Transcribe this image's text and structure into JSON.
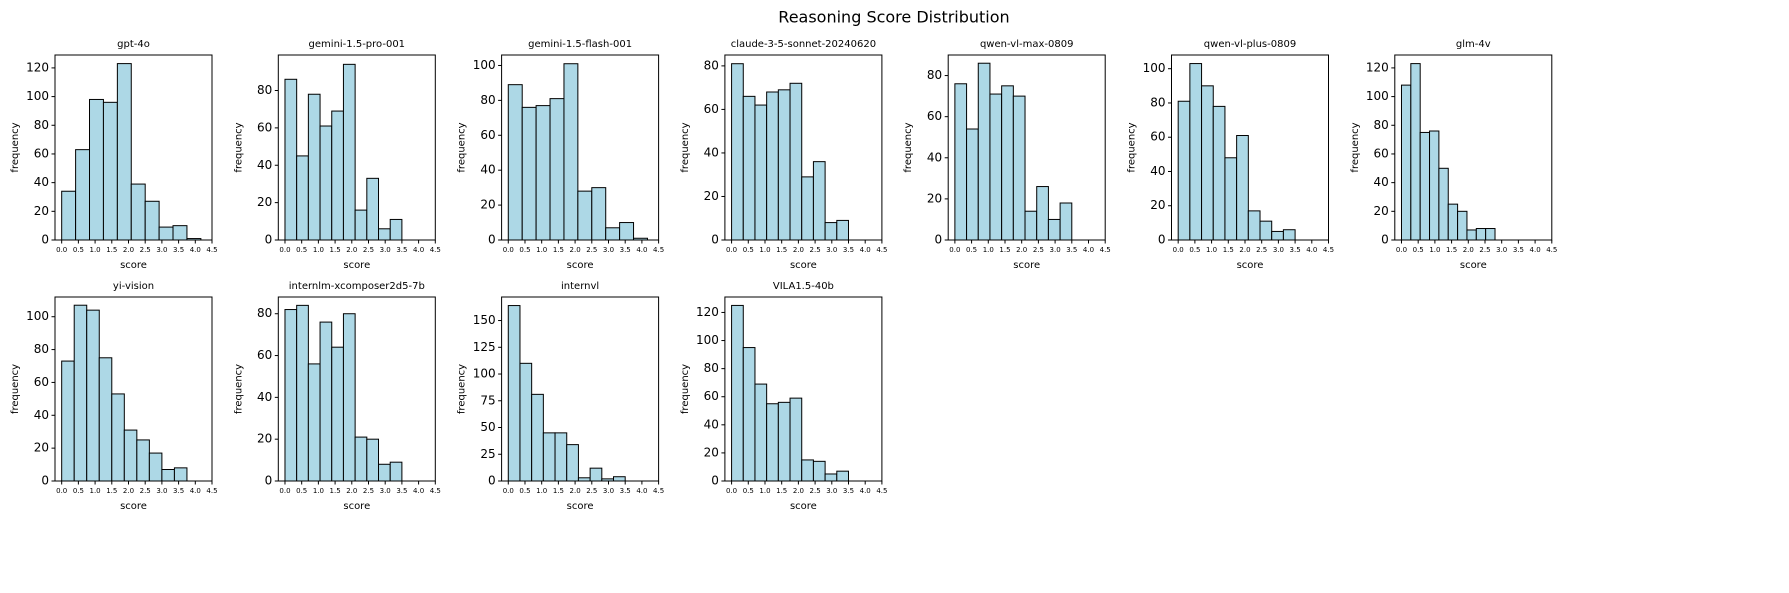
{
  "title": "Reasoning Score Distribution",
  "chart_data": [
    {
      "type": "histogram",
      "title": "gpt-4o",
      "x_label": "score",
      "y_label": "frequency",
      "color": "#add8e6",
      "bins": [
        0,
        0.417,
        0.833,
        1.25,
        1.667,
        2.083,
        2.5,
        2.917,
        3.333,
        3.75,
        4.167
      ],
      "values": [
        34,
        63,
        98,
        96,
        123,
        39,
        27,
        9,
        10,
        1
      ],
      "xlim": [
        -0.2,
        4.5
      ],
      "xticks": [
        {
          "value": 0,
          "label": "0.0"
        },
        0.5,
        {
          "value": 1,
          "label": "1.0"
        },
        1.5,
        {
          "value": 2,
          "label": "2.0"
        },
        2.5,
        {
          "value": 3,
          "label": "3.0"
        },
        3.5,
        {
          "value": 4,
          "label": "4.0"
        },
        4.5
      ],
      "ylim": [
        0,
        129
      ],
      "yticks": [
        0,
        20,
        40,
        60,
        80,
        100,
        120
      ]
    },
    {
      "type": "histogram",
      "title": "gemini-1.5-pro-001",
      "x_label": "score",
      "y_label": "frequency",
      "color": "#add8e6",
      "bins": [
        0,
        0.35,
        0.7,
        1.05,
        1.4,
        1.75,
        2.1,
        2.45,
        2.8,
        3.15,
        3.5
      ],
      "values": [
        86,
        45,
        78,
        61,
        69,
        94,
        16,
        33,
        6,
        11
      ],
      "xlim": [
        -0.2,
        4.5
      ],
      "xticks": [
        {
          "value": 0,
          "label": "0.0"
        },
        0.5,
        {
          "value": 1,
          "label": "1.0"
        },
        1.5,
        {
          "value": 2,
          "label": "2.0"
        },
        2.5,
        {
          "value": 3,
          "label": "3.0"
        },
        3.5,
        {
          "value": 4,
          "label": "4.0"
        },
        4.5
      ],
      "ylim": [
        0,
        99
      ],
      "yticks": [
        0,
        20,
        40,
        60,
        80
      ]
    },
    {
      "type": "histogram",
      "title": "gemini-1.5-flash-001",
      "x_label": "score",
      "y_label": "frequency",
      "color": "#add8e6",
      "bins": [
        0,
        0.417,
        0.833,
        1.25,
        1.667,
        2.083,
        2.5,
        2.917,
        3.333,
        3.75,
        4.167
      ],
      "values": [
        89,
        76,
        77,
        81,
        101,
        28,
        30,
        7,
        10,
        1
      ],
      "xlim": [
        -0.2,
        4.5
      ],
      "xticks": [
        {
          "value": 0,
          "label": "0.0"
        },
        0.5,
        {
          "value": 1,
          "label": "1.0"
        },
        1.5,
        {
          "value": 2,
          "label": "2.0"
        },
        2.5,
        {
          "value": 3,
          "label": "3.0"
        },
        3.5,
        {
          "value": 4,
          "label": "4.0"
        },
        4.5
      ],
      "ylim": [
        0,
        106
      ],
      "yticks": [
        0,
        20,
        40,
        60,
        80,
        100
      ]
    },
    {
      "type": "histogram",
      "title": "claude-3-5-sonnet-20240620",
      "x_label": "score",
      "y_label": "frequency",
      "color": "#add8e6",
      "bins": [
        0,
        0.35,
        0.7,
        1.05,
        1.4,
        1.75,
        2.1,
        2.45,
        2.8,
        3.15,
        3.5
      ],
      "values": [
        81,
        66,
        62,
        68,
        69,
        72,
        29,
        36,
        8,
        9
      ],
      "xlim": [
        -0.2,
        4.5
      ],
      "xticks": [
        {
          "value": 0,
          "label": "0.0"
        },
        0.5,
        {
          "value": 1,
          "label": "1.0"
        },
        1.5,
        {
          "value": 2,
          "label": "2.0"
        },
        2.5,
        {
          "value": 3,
          "label": "3.0"
        },
        3.5,
        {
          "value": 4,
          "label": "4.0"
        },
        4.5
      ],
      "ylim": [
        0,
        85
      ],
      "yticks": [
        0,
        20,
        40,
        60,
        80
      ]
    },
    {
      "type": "histogram",
      "title": "qwen-vl-max-0809",
      "x_label": "score",
      "y_label": "frequency",
      "color": "#add8e6",
      "bins": [
        0,
        0.35,
        0.7,
        1.05,
        1.4,
        1.75,
        2.1,
        2.45,
        2.8,
        3.15,
        3.5
      ],
      "values": [
        76,
        54,
        86,
        71,
        75,
        70,
        14,
        26,
        10,
        18
      ],
      "xlim": [
        -0.2,
        4.5
      ],
      "xticks": [
        {
          "value": 0,
          "label": "0.0"
        },
        0.5,
        {
          "value": 1,
          "label": "1.0"
        },
        1.5,
        {
          "value": 2,
          "label": "2.0"
        },
        2.5,
        {
          "value": 3,
          "label": "3.0"
        },
        3.5,
        {
          "value": 4,
          "label": "4.0"
        },
        4.5
      ],
      "ylim": [
        0,
        90
      ],
      "yticks": [
        0,
        20,
        40,
        60,
        80
      ]
    },
    {
      "type": "histogram",
      "title": "qwen-vl-plus-0809",
      "x_label": "score",
      "y_label": "frequency",
      "color": "#add8e6",
      "bins": [
        0,
        0.35,
        0.7,
        1.05,
        1.4,
        1.75,
        2.1,
        2.45,
        2.8,
        3.15,
        3.5
      ],
      "values": [
        81,
        103,
        90,
        78,
        48,
        61,
        17,
        11,
        5,
        6
      ],
      "xlim": [
        -0.2,
        4.5
      ],
      "xticks": [
        {
          "value": 0,
          "label": "0.0"
        },
        0.5,
        {
          "value": 1,
          "label": "1.0"
        },
        1.5,
        {
          "value": 2,
          "label": "2.0"
        },
        2.5,
        {
          "value": 3,
          "label": "3.0"
        },
        3.5,
        {
          "value": 4,
          "label": "4.0"
        },
        4.5
      ],
      "ylim": [
        0,
        108
      ],
      "yticks": [
        0,
        20,
        40,
        60,
        80,
        100
      ]
    },
    {
      "type": "histogram",
      "title": "glm-4v",
      "x_label": "score",
      "y_label": "frequency",
      "color": "#add8e6",
      "bins": [
        0,
        0.28,
        0.56,
        0.84,
        1.12,
        1.4,
        1.68,
        1.96,
        2.24,
        2.52,
        2.8
      ],
      "values": [
        108,
        123,
        75,
        76,
        50,
        25,
        20,
        7,
        8,
        8
      ],
      "xlim": [
        -0.2,
        4.5
      ],
      "xticks": [
        {
          "value": 0,
          "label": "0.0"
        },
        0.5,
        {
          "value": 1,
          "label": "1.0"
        },
        1.5,
        {
          "value": 2,
          "label": "2.0"
        },
        2.5,
        {
          "value": 3,
          "label": "3.0"
        },
        3.5,
        {
          "value": 4,
          "label": "4.0"
        },
        4.5
      ],
      "ylim": [
        0,
        129
      ],
      "yticks": [
        0,
        20,
        40,
        60,
        80,
        100,
        120
      ]
    },
    {
      "type": "histogram",
      "title": "yi-vision",
      "x_label": "score",
      "y_label": "frequency",
      "color": "#add8e6",
      "bins": [
        0,
        0.375,
        0.75,
        1.125,
        1.5,
        1.875,
        2.25,
        2.625,
        3,
        3.375,
        3.75
      ],
      "values": [
        73,
        107,
        104,
        75,
        53,
        31,
        25,
        17,
        7,
        8
      ],
      "xlim": [
        -0.2,
        4.5
      ],
      "xticks": [
        {
          "value": 0,
          "label": "0.0"
        },
        0.5,
        {
          "value": 1,
          "label": "1.0"
        },
        1.5,
        {
          "value": 2,
          "label": "2.0"
        },
        2.5,
        {
          "value": 3,
          "label": "3.0"
        },
        3.5,
        {
          "value": 4,
          "label": "4.0"
        },
        4.5
      ],
      "ylim": [
        0,
        112
      ],
      "yticks": [
        0,
        20,
        40,
        60,
        80,
        100
      ]
    },
    {
      "type": "histogram",
      "title": "internlm-xcomposer2d5-7b",
      "x_label": "score",
      "y_label": "frequency",
      "color": "#add8e6",
      "bins": [
        0,
        0.35,
        0.7,
        1.05,
        1.4,
        1.75,
        2.1,
        2.45,
        2.8,
        3.15,
        3.5
      ],
      "values": [
        82,
        84,
        56,
        76,
        64,
        80,
        21,
        20,
        8,
        9
      ],
      "xlim": [
        -0.2,
        4.5
      ],
      "xticks": [
        {
          "value": 0,
          "label": "0.0"
        },
        0.5,
        {
          "value": 1,
          "label": "1.0"
        },
        1.5,
        {
          "value": 2,
          "label": "2.0"
        },
        2.5,
        {
          "value": 3,
          "label": "3.0"
        },
        3.5,
        {
          "value": 4,
          "label": "4.0"
        },
        4.5
      ],
      "ylim": [
        0,
        88
      ],
      "yticks": [
        0,
        20,
        40,
        60,
        80
      ]
    },
    {
      "type": "histogram",
      "title": "internvl",
      "x_label": "score",
      "y_label": "frequency",
      "color": "#add8e6",
      "bins": [
        0,
        0.35,
        0.7,
        1.05,
        1.4,
        1.75,
        2.1,
        2.45,
        2.8,
        3.15,
        3.5
      ],
      "values": [
        164,
        110,
        81,
        45,
        45,
        34,
        3,
        12,
        2,
        4
      ],
      "xlim": [
        -0.2,
        4.5
      ],
      "xticks": [
        {
          "value": 0,
          "label": "0.0"
        },
        0.5,
        {
          "value": 1,
          "label": "1.0"
        },
        1.5,
        {
          "value": 2,
          "label": "2.0"
        },
        2.5,
        {
          "value": 3,
          "label": "3.0"
        },
        3.5,
        {
          "value": 4,
          "label": "4.0"
        },
        4.5
      ],
      "ylim": [
        0,
        172
      ],
      "yticks": [
        0,
        25,
        50,
        75,
        100,
        125,
        150
      ]
    },
    {
      "type": "histogram",
      "title": "VILA1.5-40b",
      "x_label": "score",
      "y_label": "frequency",
      "color": "#add8e6",
      "bins": [
        0,
        0.35,
        0.7,
        1.05,
        1.4,
        1.75,
        2.1,
        2.45,
        2.8,
        3.15,
        3.5
      ],
      "values": [
        125,
        95,
        69,
        55,
        56,
        59,
        15,
        14,
        5,
        7
      ],
      "xlim": [
        -0.2,
        4.5
      ],
      "xticks": [
        {
          "value": 0,
          "label": "0.0"
        },
        0.5,
        {
          "value": 1,
          "label": "1.0"
        },
        1.5,
        {
          "value": 2,
          "label": "2.0"
        },
        2.5,
        {
          "value": 3,
          "label": "3.0"
        },
        3.5,
        {
          "value": 4,
          "label": "4.0"
        },
        4.5
      ],
      "ylim": [
        0,
        131
      ],
      "yticks": [
        0,
        20,
        40,
        60,
        80,
        100,
        120
      ]
    }
  ]
}
